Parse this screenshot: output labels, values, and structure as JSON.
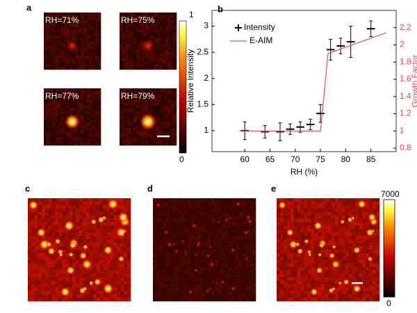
{
  "panel_a": {
    "label": "a",
    "images": [
      "RH=71%",
      "RH=75%",
      "RH=77%",
      "RH=79%"
    ],
    "colorbar_max": "1",
    "colorbar_min": "0"
  },
  "chart_data": {
    "type": "errorbar",
    "label": "b",
    "x_label": "RH (%)",
    "y_label": "Relative Intensity",
    "y2_label": "Growth Factor",
    "xlim": [
      53.5,
      90
    ],
    "xticks": [
      60,
      65,
      70,
      75,
      80,
      85
    ],
    "ylim": [
      0.6,
      3.3
    ],
    "yticks": [
      1,
      1.5,
      2,
      2.5,
      3
    ],
    "y2lim": [
      0.76,
      2.4
    ],
    "y2ticks": [
      0.8,
      1,
      1.2,
      1.4,
      1.6,
      1.8,
      2,
      2.2
    ],
    "legend": "upper left",
    "series": [
      {
        "name": "Intensity",
        "color": "#000000",
        "x": [
          60,
          64,
          67,
          69,
          71,
          73,
          75,
          77,
          79,
          81,
          85
        ],
        "values": [
          1,
          0.98,
          0.98,
          1.03,
          1.07,
          1.12,
          1.33,
          2.55,
          2.62,
          2.7,
          2.95
        ],
        "errors": [
          0.17,
          0.12,
          0.17,
          0.1,
          0.1,
          0.1,
          0.17,
          0.2,
          0.15,
          0.3,
          0.15
        ],
        "x_errors": [
          0.8,
          0.8,
          0.8,
          0.8,
          0.8,
          0.8,
          0.8,
          0.8,
          0.8,
          0.8,
          0.8
        ]
      },
      {
        "name": "E-AIM",
        "color": "#d9534f",
        "axis": "y2",
        "x": [
          59,
          75,
          76.5,
          88
        ],
        "values": [
          1,
          1,
          1.9,
          2.14
        ]
      }
    ]
  },
  "panel_c": {
    "label": "c"
  },
  "panel_d": {
    "label": "d"
  },
  "panel_e": {
    "label": "e",
    "colorbar_max": "7000",
    "colorbar_min": "0"
  }
}
